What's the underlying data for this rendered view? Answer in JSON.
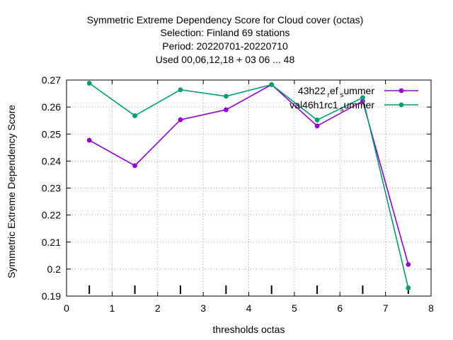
{
  "chart_data": {
    "type": "line",
    "title_lines": [
      "Symmetric Extreme Dependency Score  for Cloud cover (octas)",
      "Selection: Finland     69 stations",
      "Period: 20220701-20220710",
      "Used  00,06,12,18  + 03 06 ... 48"
    ],
    "xlabel": "thresholds octas",
    "ylabel": "Symmetric Extreme Dependency Score",
    "xlim": [
      0,
      8
    ],
    "ylim": [
      0.19,
      0.27
    ],
    "xticks": [
      "0",
      "1",
      "2",
      "3",
      "4",
      "5",
      "6",
      "7",
      "8"
    ],
    "yticks": [
      "0.19",
      "0.2",
      "0.21",
      "0.22",
      "0.23",
      "0.24",
      "0.25",
      "0.26",
      "0.27"
    ],
    "grid": true,
    "legend_position": "top-right",
    "threshold_marks": [
      0.5,
      1.5,
      2.5,
      3.5,
      4.5,
      5.5,
      6.5,
      7.5
    ],
    "x": [
      0.5,
      1.5,
      2.5,
      3.5,
      4.5,
      5.5,
      6.5,
      7.5
    ],
    "series": [
      {
        "name": "43h22_ref_summer",
        "label_parts": [
          "43h22",
          "r",
          "ef",
          "s",
          "ummer"
        ],
        "color": "#9400d3",
        "values": [
          0.2477,
          0.2383,
          0.2553,
          0.259,
          0.2683,
          0.253,
          0.2622,
          0.2017
        ]
      },
      {
        "name": "val46h1rc1_summer",
        "label_parts": [
          "val46h1rc1",
          "",
          "",
          "s",
          "ummer"
        ],
        "color": "#009e73",
        "values": [
          0.2688,
          0.2568,
          0.2664,
          0.264,
          0.2683,
          0.2552,
          0.2635,
          0.193
        ]
      }
    ]
  }
}
